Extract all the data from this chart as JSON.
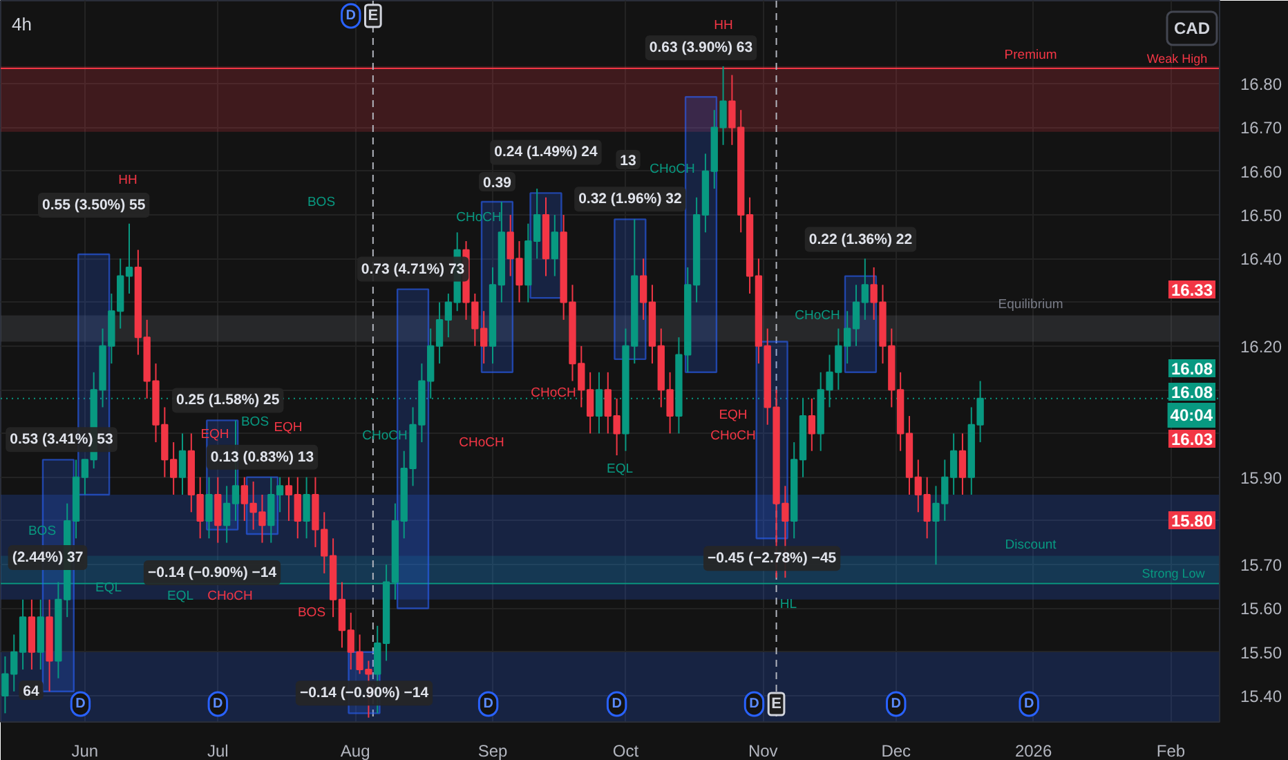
{
  "chart_data": {
    "type": "candlestick",
    "title": "4h",
    "x": [
      "2025-05-14",
      "2025-05-16",
      "2025-05-18",
      "2025-05-20",
      "2025-05-22",
      "2025-05-24",
      "2025-05-26",
      "2025-05-28",
      "2025-05-30",
      "2025-06-01",
      "2025-06-03",
      "2025-06-05",
      "2025-06-07",
      "2025-06-09",
      "2025-06-11",
      "2025-06-13",
      "2025-06-15",
      "2025-06-17",
      "2025-06-19",
      "2025-06-21",
      "2025-06-23",
      "2025-06-25",
      "2025-06-27",
      "2025-06-29",
      "2025-07-01",
      "2025-07-03",
      "2025-07-05",
      "2025-07-07",
      "2025-07-09",
      "2025-07-11",
      "2025-07-13",
      "2025-07-15",
      "2025-07-17",
      "2025-07-19",
      "2025-07-21",
      "2025-07-23",
      "2025-07-25",
      "2025-07-27",
      "2025-07-29",
      "2025-07-31",
      "2025-08-02",
      "2025-08-04",
      "2025-08-06",
      "2025-08-08",
      "2025-08-10",
      "2025-08-12",
      "2025-08-14",
      "2025-08-16",
      "2025-08-18",
      "2025-08-20",
      "2025-08-22",
      "2025-08-24",
      "2025-08-26",
      "2025-08-28",
      "2025-08-30",
      "2025-09-01",
      "2025-09-03",
      "2025-09-05",
      "2025-09-07",
      "2025-09-09",
      "2025-09-11",
      "2025-09-13",
      "2025-09-15",
      "2025-09-17",
      "2025-09-19",
      "2025-09-21",
      "2025-09-23",
      "2025-09-25",
      "2025-09-27",
      "2025-09-29",
      "2025-10-01",
      "2025-10-03",
      "2025-10-05",
      "2025-10-07",
      "2025-10-09",
      "2025-10-11",
      "2025-10-13",
      "2025-10-15",
      "2025-10-17",
      "2025-10-19",
      "2025-10-21",
      "2025-10-23",
      "2025-10-25",
      "2025-10-27",
      "2025-10-29",
      "2025-10-31",
      "2025-11-02",
      "2025-11-04",
      "2025-11-06",
      "2025-11-08",
      "2025-11-10",
      "2025-11-12",
      "2025-11-14",
      "2025-11-16",
      "2025-11-18",
      "2025-11-20",
      "2025-11-22",
      "2025-11-24",
      "2025-11-26",
      "2025-11-28",
      "2025-11-30",
      "2025-12-02",
      "2025-12-04",
      "2025-12-06",
      "2025-12-08",
      "2025-12-10",
      "2025-12-12",
      "2025-12-14",
      "2025-12-16",
      "2025-12-18",
      "2025-12-20"
    ],
    "ohlc": [
      [
        15.4,
        15.49,
        15.36,
        15.45
      ],
      [
        15.45,
        15.54,
        15.41,
        15.5
      ],
      [
        15.5,
        15.62,
        15.46,
        15.58
      ],
      [
        15.58,
        15.62,
        15.46,
        15.5
      ],
      [
        15.5,
        15.62,
        15.46,
        15.58
      ],
      [
        15.58,
        15.62,
        15.41,
        15.48
      ],
      [
        15.48,
        15.66,
        15.44,
        15.62
      ],
      [
        15.62,
        15.84,
        15.58,
        15.8
      ],
      [
        15.8,
        15.94,
        15.76,
        15.9
      ],
      [
        15.9,
        15.94,
        15.86,
        15.94
      ],
      [
        15.94,
        16.14,
        15.92,
        16.1
      ],
      [
        16.1,
        16.24,
        16.06,
        16.2
      ],
      [
        16.2,
        16.32,
        16.16,
        16.28
      ],
      [
        16.28,
        16.4,
        16.24,
        16.36
      ],
      [
        16.36,
        16.48,
        16.32,
        16.38
      ],
      [
        16.38,
        16.42,
        16.18,
        16.22
      ],
      [
        16.22,
        16.26,
        16.08,
        16.12
      ],
      [
        16.12,
        16.16,
        15.98,
        16.02
      ],
      [
        16.02,
        16.06,
        15.9,
        15.94
      ],
      [
        15.94,
        15.98,
        15.86,
        15.9
      ],
      [
        15.9,
        16.0,
        15.86,
        15.96
      ],
      [
        15.96,
        16.0,
        15.82,
        15.86
      ],
      [
        15.86,
        15.9,
        15.76,
        15.8
      ],
      [
        15.8,
        15.9,
        15.76,
        15.86
      ],
      [
        15.86,
        15.9,
        15.75,
        15.79
      ],
      [
        15.79,
        15.88,
        15.75,
        15.84
      ],
      [
        15.84,
        16.03,
        15.8,
        15.88
      ],
      [
        15.88,
        15.9,
        15.8,
        15.84
      ],
      [
        15.84,
        15.89,
        15.78,
        15.82
      ],
      [
        15.82,
        15.86,
        15.75,
        15.79
      ],
      [
        15.79,
        15.9,
        15.75,
        15.86
      ],
      [
        15.86,
        15.9,
        15.82,
        15.88
      ],
      [
        15.88,
        15.9,
        15.8,
        15.86
      ],
      [
        15.86,
        15.9,
        15.76,
        15.8
      ],
      [
        15.8,
        15.9,
        15.76,
        15.86
      ],
      [
        15.86,
        15.9,
        15.74,
        15.78
      ],
      [
        15.78,
        15.82,
        15.68,
        15.72
      ],
      [
        15.72,
        15.76,
        15.58,
        15.62
      ],
      [
        15.62,
        15.66,
        15.51,
        15.55
      ],
      [
        15.55,
        15.59,
        15.46,
        15.5
      ],
      [
        15.5,
        15.54,
        15.45,
        15.46
      ],
      [
        15.46,
        15.48,
        15.35,
        15.45
      ],
      [
        15.45,
        15.56,
        15.36,
        15.52
      ],
      [
        15.52,
        15.7,
        15.48,
        15.66
      ],
      [
        15.66,
        15.84,
        15.62,
        15.8
      ],
      [
        15.8,
        15.96,
        15.76,
        15.92
      ],
      [
        15.92,
        16.06,
        15.88,
        16.02
      ],
      [
        16.02,
        16.16,
        15.98,
        16.12
      ],
      [
        16.12,
        16.24,
        16.08,
        16.2
      ],
      [
        16.2,
        16.3,
        16.16,
        16.26
      ],
      [
        16.26,
        16.32,
        16.22,
        16.3
      ],
      [
        16.3,
        16.46,
        16.28,
        16.42
      ],
      [
        16.42,
        16.44,
        16.26,
        16.3
      ],
      [
        16.3,
        16.32,
        16.2,
        16.24
      ],
      [
        16.24,
        16.28,
        16.16,
        16.2
      ],
      [
        16.2,
        16.38,
        16.16,
        16.34
      ],
      [
        16.34,
        16.53,
        16.3,
        16.46
      ],
      [
        16.46,
        16.5,
        16.36,
        16.4
      ],
      [
        16.4,
        16.44,
        16.3,
        16.34
      ],
      [
        16.34,
        16.48,
        16.3,
        16.44
      ],
      [
        16.44,
        16.56,
        16.4,
        16.5
      ],
      [
        16.5,
        16.54,
        16.36,
        16.4
      ],
      [
        16.4,
        16.5,
        16.36,
        16.46
      ],
      [
        16.46,
        16.5,
        16.26,
        16.3
      ],
      [
        16.3,
        16.34,
        16.12,
        16.16
      ],
      [
        16.16,
        16.2,
        16.06,
        16.1
      ],
      [
        16.1,
        16.14,
        16.0,
        16.04
      ],
      [
        16.04,
        16.14,
        16.0,
        16.1
      ],
      [
        16.1,
        16.14,
        16.0,
        16.04
      ],
      [
        16.04,
        16.08,
        15.95,
        16.0
      ],
      [
        16.0,
        16.24,
        15.96,
        16.2
      ],
      [
        16.2,
        16.49,
        16.16,
        16.36
      ],
      [
        16.36,
        16.4,
        16.26,
        16.3
      ],
      [
        16.3,
        16.34,
        16.16,
        16.2
      ],
      [
        16.2,
        16.24,
        16.06,
        16.1
      ],
      [
        16.1,
        16.14,
        16.0,
        16.04
      ],
      [
        16.04,
        16.22,
        16.0,
        16.18
      ],
      [
        16.18,
        16.38,
        16.14,
        16.34
      ],
      [
        16.34,
        16.54,
        16.3,
        16.5
      ],
      [
        16.5,
        16.64,
        16.46,
        16.6
      ],
      [
        16.6,
        16.74,
        16.56,
        16.7
      ],
      [
        16.7,
        16.84,
        16.66,
        16.76
      ],
      [
        16.76,
        16.82,
        16.66,
        16.7
      ],
      [
        16.7,
        16.74,
        16.46,
        16.5
      ],
      [
        16.5,
        16.54,
        16.32,
        16.36
      ],
      [
        16.36,
        16.4,
        16.16,
        16.2
      ],
      [
        16.2,
        16.24,
        16.02,
        16.06
      ],
      [
        16.06,
        16.1,
        15.67,
        15.84
      ],
      [
        15.84,
        15.88,
        15.67,
        15.8
      ],
      [
        15.8,
        15.98,
        15.76,
        15.94
      ],
      [
        15.94,
        16.08,
        15.9,
        16.04
      ],
      [
        16.04,
        16.08,
        15.96,
        16.0
      ],
      [
        16.0,
        16.14,
        15.96,
        16.1
      ],
      [
        16.1,
        16.18,
        16.06,
        16.14
      ],
      [
        16.14,
        16.24,
        16.1,
        16.2
      ],
      [
        16.2,
        16.28,
        16.16,
        16.24
      ],
      [
        16.24,
        16.34,
        16.2,
        16.3
      ],
      [
        16.3,
        16.4,
        16.26,
        16.34
      ],
      [
        16.34,
        16.38,
        16.26,
        16.3
      ],
      [
        16.3,
        16.34,
        16.16,
        16.2
      ],
      [
        16.2,
        16.24,
        16.06,
        16.1
      ],
      [
        16.1,
        16.14,
        15.96,
        16.0
      ],
      [
        16.0,
        16.04,
        15.86,
        15.9
      ],
      [
        15.9,
        15.94,
        15.82,
        15.86
      ],
      [
        15.86,
        15.9,
        15.76,
        15.8
      ],
      [
        15.8,
        15.88,
        15.7,
        15.84
      ],
      [
        15.84,
        15.94,
        15.8,
        15.9
      ],
      [
        15.9,
        16.0,
        15.86,
        15.96
      ],
      [
        15.96,
        16.0,
        15.86,
        15.9
      ],
      [
        15.9,
        16.06,
        15.86,
        16.02
      ],
      [
        16.02,
        16.12,
        15.98,
        16.08
      ]
    ],
    "colors": [
      "#089981",
      "#089981",
      "#089981",
      "#f23645",
      "#089981",
      "#f23645",
      "#089981",
      "#089981",
      "#089981",
      "#089981",
      "#089981",
      "#089981",
      "#089981",
      "#089981",
      "#089981",
      "#f23645",
      "#f23645",
      "#f23645",
      "#f23645",
      "#f23645",
      "#089981",
      "#f23645",
      "#f23645",
      "#089981",
      "#f23645",
      "#089981",
      "#089981",
      "#f23645",
      "#f23645",
      "#f23645",
      "#089981",
      "#089981",
      "#f23645",
      "#f23645",
      "#089981",
      "#f23645",
      "#f23645",
      "#f23645",
      "#f23645",
      "#f23645",
      "#f23645",
      "#f23645",
      "#089981",
      "#089981",
      "#089981",
      "#089981",
      "#089981",
      "#089981",
      "#089981",
      "#089981",
      "#089981",
      "#089981",
      "#f23645",
      "#f23645",
      "#f23645",
      "#089981",
      "#089981",
      "#f23645",
      "#f23645",
      "#089981",
      "#089981",
      "#f23645",
      "#089981",
      "#f23645",
      "#f23645",
      "#f23645",
      "#f23645",
      "#089981",
      "#f23645",
      "#f23645",
      "#089981",
      "#089981",
      "#f23645",
      "#f23645",
      "#f23645",
      "#f23645",
      "#089981",
      "#089981",
      "#089981",
      "#089981",
      "#089981",
      "#089981",
      "#f23645",
      "#f23645",
      "#f23645",
      "#f23645",
      "#f23645",
      "#f23645",
      "#f23645",
      "#089981",
      "#089981",
      "#f23645",
      "#089981",
      "#089981",
      "#089981",
      "#089981",
      "#089981",
      "#089981",
      "#f23645",
      "#f23645",
      "#f23645",
      "#f23645",
      "#f23645",
      "#f23645",
      "#f23645",
      "#089981",
      "#089981",
      "#089981",
      "#f23645",
      "#089981",
      "#089981"
    ],
    "series": [
      {
        "type": "bar",
        "color": "#2962ff",
        "x": [
          "2025-05-26",
          "2025-06-03",
          "2025-07-02",
          "2025-07-11",
          "2025-08-03",
          "2025-08-14",
          "2025-09-02",
          "2025-09-13",
          "2025-10-02",
          "2025-10-18",
          "2025-11-03",
          "2025-11-23"
        ],
        "base": [
          15.41,
          15.86,
          15.78,
          15.77,
          15.5,
          15.6,
          16.14,
          16.31,
          16.17,
          16.14,
          16.21,
          16.14
        ],
        "values": [
          0.53,
          0.55,
          0.25,
          0.13,
          -0.14,
          0.73,
          0.39,
          0.24,
          0.32,
          0.63,
          -0.45,
          0.22
        ],
        "value_labels": [
          "0.53 (3.41%) 53",
          "0.55 (3.50%) 55",
          "0.25 (1.58%) 25",
          "0.13 (0.83%) 13",
          "−0.14 (−0.90%) −14",
          "0.73 (4.71%) 73",
          "0.39",
          "0.24 (1.49%) 24",
          "0.32 (1.96%) 32",
          "0.63 (3.90%) 63",
          "−0.45 (−2.78%) −45",
          "0.22 (1.36%) 22"
        ]
      }
    ],
    "xlim": [
      "2025-05-13",
      "2026-02-12"
    ],
    "xticks": [
      {
        "value": "2025-06-01",
        "label": "Jun"
      },
      {
        "value": "2025-07-01",
        "label": "Jul"
      },
      {
        "value": "2025-08-01",
        "label": "Aug"
      },
      {
        "value": "2025-09-01",
        "label": "Sep"
      },
      {
        "value": "2025-10-01",
        "label": "Oct"
      },
      {
        "value": "2025-11-01",
        "label": "Nov"
      },
      {
        "value": "2025-12-01",
        "label": "Dec"
      },
      {
        "value": "2026-01-01",
        "label": "2026"
      },
      {
        "value": "2026-02-01",
        "label": "Feb"
      }
    ],
    "ylim": [
      15.34,
      16.99
    ],
    "yticks": [
      {
        "value": 15.4,
        "label": "15.40"
      },
      {
        "value": 15.5,
        "label": "15.50"
      },
      {
        "value": 15.6,
        "label": "15.60"
      },
      {
        "value": 15.7,
        "label": "15.70"
      },
      {
        "value": 15.8,
        "label": null
      },
      {
        "value": 15.9,
        "label": "15.90"
      },
      {
        "value": 16.0,
        "label": null
      },
      {
        "value": 16.1,
        "label": null
      },
      {
        "value": 16.2,
        "label": "16.20"
      },
      {
        "value": 16.3,
        "label": null
      },
      {
        "value": 16.4,
        "label": "16.40"
      },
      {
        "value": 16.5,
        "label": "16.50"
      },
      {
        "value": 16.6,
        "label": "16.60"
      },
      {
        "value": 16.7,
        "label": "16.70"
      },
      {
        "value": 16.8,
        "label": "16.80"
      }
    ],
    "grid": true,
    "bands": [
      {
        "axis": "y",
        "from": 16.69,
        "to": 16.84,
        "label": "Premium",
        "color": "#f23645"
      },
      {
        "axis": "y",
        "from": 16.21,
        "to": 16.27,
        "label": "Equilibrium",
        "color": "#787b86"
      },
      {
        "axis": "y",
        "from": 15.66,
        "to": 15.72,
        "label": "Discount",
        "color": "#089981"
      },
      {
        "axis": "y",
        "from": 15.62,
        "to": 15.86,
        "color": "#2962ff"
      },
      {
        "axis": "y",
        "from": 15.34,
        "to": 15.5,
        "color": "#2962ff"
      }
    ],
    "ref_lines": [
      {
        "axis": "y",
        "value": 16.835,
        "label": "Weak High",
        "color": "#f23645"
      },
      {
        "axis": "y",
        "value": 15.657,
        "label": "Strong Low",
        "color": "#089981"
      },
      {
        "axis": "y",
        "value": 16.08,
        "color": "#089981",
        "line_style": "dotted"
      },
      {
        "axis": "x",
        "value": "2025-08-05",
        "label": "E",
        "color": "#b2b5be",
        "line_style": "dashed"
      },
      {
        "axis": "x",
        "value": "2025-11-04",
        "label": "E",
        "color": "#b2b5be",
        "line_style": "dashed"
      }
    ],
    "annotations": [
      "CAD",
      "(2.44%) 37",
      "64",
      "−0.14 (−0.90%) −14",
      "13",
      "HH",
      "BOS",
      "BOS",
      "EQH",
      "BOS",
      "EQH",
      "EQL",
      "EQL",
      "CHoCH",
      "BOS",
      "CHoCH",
      "CHoCH",
      "CHoCH",
      "CHoCH",
      "EQL",
      "CHoCH",
      "HH",
      "CHoCH",
      "EQH",
      "CHoCH",
      "HL",
      "16.33",
      "16.08",
      "16.08",
      "40:04",
      "16.03",
      "15.80",
      {
        "text": "D",
        "x": "2025-05-31"
      },
      {
        "text": "D",
        "x": "2025-07-01"
      },
      {
        "text": "D",
        "x": "2025-07-31"
      },
      {
        "text": "D",
        "x": "2025-08-31"
      },
      {
        "text": "D",
        "x": "2025-09-29"
      },
      {
        "text": "D",
        "x": "2025-10-30"
      },
      {
        "text": "D",
        "x": "2025-12-01"
      },
      {
        "text": "D",
        "x": "2025-12-31"
      }
    ]
  }
}
